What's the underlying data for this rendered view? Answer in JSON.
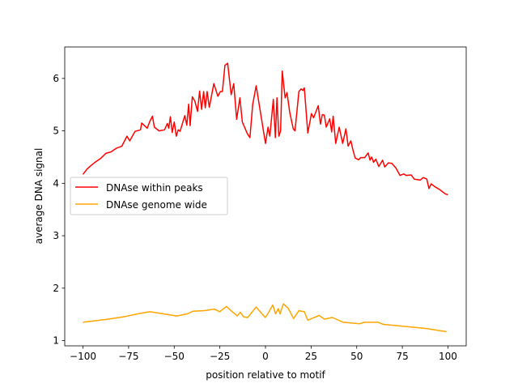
{
  "chart_data": {
    "type": "line",
    "title": "",
    "xlabel": "position relative to motif",
    "ylabel": "average DNA signal",
    "xlim": [
      -110,
      110
    ],
    "ylim": [
      0.9,
      6.6
    ],
    "xticks": [
      -100,
      -75,
      -50,
      -25,
      0,
      25,
      50,
      75,
      100
    ],
    "yticks": [
      1,
      2,
      3,
      4,
      5,
      6
    ],
    "grid": false,
    "legend_placement": "center-left",
    "series": [
      {
        "name": "DNAse within peaks",
        "color": "#ff0000",
        "points": [
          [
            -100,
            4.17
          ],
          [
            -97.8,
            4.27
          ],
          [
            -95.6,
            4.34
          ],
          [
            -93.4,
            4.4
          ],
          [
            -90.5,
            4.47
          ],
          [
            -87.5,
            4.57
          ],
          [
            -84.6,
            4.6
          ],
          [
            -81.6,
            4.67
          ],
          [
            -78.7,
            4.71
          ],
          [
            -75.9,
            4.9
          ],
          [
            -74.4,
            4.81
          ],
          [
            -71.5,
            4.99
          ],
          [
            -68.5,
            5.02
          ],
          [
            -67.8,
            5.15
          ],
          [
            -64.8,
            5.05
          ],
          [
            -63.4,
            5.18
          ],
          [
            -61.9,
            5.28
          ],
          [
            -60.9,
            5.07
          ],
          [
            -58.3,
            5.0
          ],
          [
            -55.3,
            5.02
          ],
          [
            -53.8,
            5.14
          ],
          [
            -53,
            5.05
          ],
          [
            -52.1,
            5.27
          ],
          [
            -51.1,
            4.97
          ],
          [
            -50,
            5.17
          ],
          [
            -48.9,
            4.9
          ],
          [
            -47.8,
            5.02
          ],
          [
            -46.8,
            4.99
          ],
          [
            -44.2,
            5.29
          ],
          [
            -43.1,
            5.11
          ],
          [
            -42.1,
            5.51
          ],
          [
            -41.3,
            5.1
          ],
          [
            -40.1,
            5.65
          ],
          [
            -38.7,
            5.57
          ],
          [
            -37.2,
            5.37
          ],
          [
            -36.1,
            5.76
          ],
          [
            -35,
            5.41
          ],
          [
            -33.9,
            5.75
          ],
          [
            -33,
            5.44
          ],
          [
            -32,
            5.75
          ],
          [
            -30.8,
            5.45
          ],
          [
            -28.3,
            5.9
          ],
          [
            -26.1,
            5.66
          ],
          [
            -24.7,
            5.75
          ],
          [
            -23.6,
            5.75
          ],
          [
            -22.2,
            6.25
          ],
          [
            -20.7,
            6.29
          ],
          [
            -18.8,
            5.69
          ],
          [
            -17.4,
            5.9
          ],
          [
            -15.8,
            5.22
          ],
          [
            -14,
            5.63
          ],
          [
            -12.7,
            5.17
          ],
          [
            -10,
            4.95
          ],
          [
            -8.5,
            4.87
          ],
          [
            -7,
            5.5
          ],
          [
            -5.1,
            5.86
          ],
          [
            0,
            4.76
          ],
          [
            1.4,
            5.07
          ],
          [
            2.4,
            4.9
          ],
          [
            4.3,
            5.6
          ],
          [
            5.4,
            4.87
          ],
          [
            6.3,
            5.63
          ],
          [
            7.3,
            4.9
          ],
          [
            8.3,
            5.0
          ],
          [
            9.2,
            6.14
          ],
          [
            10.8,
            5.63
          ],
          [
            11.8,
            5.73
          ],
          [
            13.3,
            5.35
          ],
          [
            15.2,
            5.04
          ],
          [
            16.2,
            5.0
          ],
          [
            18.3,
            5.75
          ],
          [
            19.5,
            5.8
          ],
          [
            20.5,
            5.77
          ],
          [
            21.3,
            5.82
          ],
          [
            23.2,
            4.96
          ],
          [
            25.2,
            5.33
          ],
          [
            26.4,
            5.25
          ],
          [
            28.9,
            5.48
          ],
          [
            30.1,
            5.13
          ],
          [
            31.2,
            5.31
          ],
          [
            32.3,
            5.3
          ],
          [
            33.3,
            5.07
          ],
          [
            35.2,
            5.23
          ],
          [
            36.3,
            4.98
          ],
          [
            37.1,
            5.28
          ],
          [
            38.5,
            4.76
          ],
          [
            40.4,
            5.07
          ],
          [
            42.3,
            4.76
          ],
          [
            44.1,
            5.04
          ],
          [
            45.3,
            4.71
          ],
          [
            46.8,
            4.81
          ],
          [
            47.8,
            4.65
          ],
          [
            49.2,
            4.48
          ],
          [
            51,
            4.45
          ],
          [
            52.2,
            4.49
          ],
          [
            54.4,
            4.49
          ],
          [
            56.3,
            4.58
          ],
          [
            57.3,
            4.44
          ],
          [
            58.2,
            4.5
          ],
          [
            59.2,
            4.4
          ],
          [
            60.5,
            4.46
          ],
          [
            62.1,
            4.32
          ],
          [
            64.2,
            4.44
          ],
          [
            65.4,
            4.31
          ],
          [
            67.3,
            4.39
          ],
          [
            69.3,
            4.38
          ],
          [
            71.5,
            4.29
          ],
          [
            73.7,
            4.15
          ],
          [
            75.9,
            4.18
          ],
          [
            77,
            4.15
          ],
          [
            79.9,
            4.16
          ],
          [
            81.5,
            4.08
          ],
          [
            84.8,
            4.06
          ],
          [
            86.5,
            4.11
          ],
          [
            88.4,
            4.08
          ],
          [
            89.6,
            3.9
          ],
          [
            90.8,
            3.99
          ],
          [
            92.6,
            3.94
          ],
          [
            95.5,
            3.88
          ],
          [
            98.5,
            3.8
          ],
          [
            100,
            3.78
          ]
        ]
      },
      {
        "name": "DNAse genome wide",
        "color": "#ffa500",
        "points": [
          [
            -100,
            1.35
          ],
          [
            -88,
            1.4
          ],
          [
            -76.6,
            1.46
          ],
          [
            -70,
            1.51
          ],
          [
            -63.4,
            1.55
          ],
          [
            -56,
            1.51
          ],
          [
            -48.6,
            1.47
          ],
          [
            -42.7,
            1.51
          ],
          [
            -39.8,
            1.56
          ],
          [
            -34,
            1.57
          ],
          [
            -28,
            1.6
          ],
          [
            -25.1,
            1.55
          ],
          [
            -21.4,
            1.65
          ],
          [
            -18.5,
            1.56
          ],
          [
            -15.5,
            1.47
          ],
          [
            -13.8,
            1.54
          ],
          [
            -11.9,
            1.45
          ],
          [
            -9.7,
            1.44
          ],
          [
            -5.2,
            1.64
          ],
          [
            -0.1,
            1.44
          ],
          [
            1.4,
            1.52
          ],
          [
            4,
            1.68
          ],
          [
            5.5,
            1.51
          ],
          [
            7,
            1.61
          ],
          [
            8,
            1.51
          ],
          [
            9.8,
            1.7
          ],
          [
            12.4,
            1.62
          ],
          [
            15.4,
            1.42
          ],
          [
            18.3,
            1.57
          ],
          [
            21.3,
            1.55
          ],
          [
            23.2,
            1.39
          ],
          [
            29.4,
            1.48
          ],
          [
            32.3,
            1.41
          ],
          [
            36.7,
            1.44
          ],
          [
            42.6,
            1.35
          ],
          [
            51.4,
            1.32
          ],
          [
            54.3,
            1.35
          ],
          [
            61.7,
            1.35
          ],
          [
            64.6,
            1.31
          ],
          [
            73.4,
            1.28
          ],
          [
            88.1,
            1.23
          ],
          [
            99.2,
            1.17
          ]
        ]
      }
    ]
  }
}
